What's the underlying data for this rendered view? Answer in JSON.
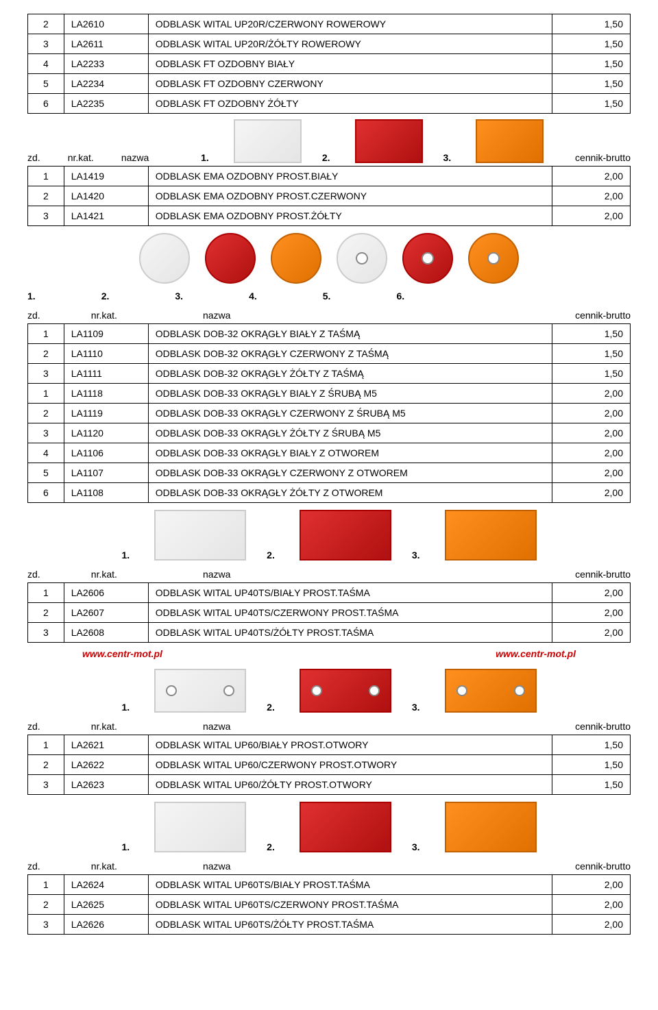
{
  "headers": {
    "zd": "zd.",
    "nrkat": "nr.kat.",
    "nazwa": "nazwa",
    "cennik": "cennik-brutto"
  },
  "links": {
    "url1": "www.centr-mot.pl",
    "url2": "www.centr-mot.pl"
  },
  "numlabels": [
    "1.",
    "2.",
    "3.",
    "4.",
    "5.",
    "6."
  ],
  "table1": {
    "rows": [
      {
        "n": "2",
        "code": "LA2610",
        "name": "ODBLASK WITAL UP20R/CZERWONY ROWEROWY",
        "price": "1,50"
      },
      {
        "n": "3",
        "code": "LA2611",
        "name": "ODBLASK WITAL UP20R/ŻÓŁTY ROWEROWY",
        "price": "1,50"
      },
      {
        "n": "4",
        "code": "LA2233",
        "name": "ODBLASK FT OZDOBNY BIAŁY",
        "price": "1,50"
      },
      {
        "n": "5",
        "code": "LA2234",
        "name": "ODBLASK FT OZDOBNY CZERWONY",
        "price": "1,50"
      },
      {
        "n": "6",
        "code": "LA2235",
        "name": "ODBLASK FT OZDOBNY ŻÓŁTY",
        "price": "1,50"
      }
    ]
  },
  "table2": {
    "rows": [
      {
        "n": "1",
        "code": "LA1419",
        "name": "ODBLASK EMA OZDOBNY PROST.BIAŁY",
        "price": "2,00"
      },
      {
        "n": "2",
        "code": "LA1420",
        "name": "ODBLASK EMA OZDOBNY PROST.CZERWONY",
        "price": "2,00"
      },
      {
        "n": "3",
        "code": "LA1421",
        "name": "ODBLASK EMA OZDOBNY PROST.ŻÓŁTY",
        "price": "2,00"
      }
    ]
  },
  "table3": {
    "rows": [
      {
        "n": "1",
        "code": "LA1109",
        "name": "ODBLASK DOB-32 OKRĄGŁY BIAŁY Z TAŚMĄ",
        "price": "1,50"
      },
      {
        "n": "2",
        "code": "LA1110",
        "name": "ODBLASK DOB-32 OKRĄGŁY CZERWONY Z TAŚMĄ",
        "price": "1,50"
      },
      {
        "n": "3",
        "code": "LA1111",
        "name": "ODBLASK DOB-32 OKRĄGŁY ŻÓŁTY Z TAŚMĄ",
        "price": "1,50"
      },
      {
        "n": "1",
        "code": "LA1118",
        "name": "ODBLASK DOB-33 OKRĄGŁY BIAŁY Z ŚRUBĄ M5",
        "price": "2,00"
      },
      {
        "n": "2",
        "code": "LA1119",
        "name": "ODBLASK DOB-33 OKRĄGŁY CZERWONY Z ŚRUBĄ M5",
        "price": "2,00"
      },
      {
        "n": "3",
        "code": "LA1120",
        "name": "ODBLASK DOB-33 OKRĄGŁY ŻÓŁTY Z ŚRUBĄ M5",
        "price": "2,00"
      },
      {
        "n": "4",
        "code": "LA1106",
        "name": "ODBLASK DOB-33 OKRĄGŁY BIAŁY Z OTWOREM",
        "price": "2,00"
      },
      {
        "n": "5",
        "code": "LA1107",
        "name": "ODBLASK DOB-33 OKRĄGŁY CZERWONY Z OTWOREM",
        "price": "2,00"
      },
      {
        "n": "6",
        "code": "LA1108",
        "name": "ODBLASK DOB-33 OKRĄGŁY ŻÓŁTY Z OTWOREM",
        "price": "2,00"
      }
    ]
  },
  "table4": {
    "rows": [
      {
        "n": "1",
        "code": "LA2606",
        "name": "ODBLASK WITAL UP40TS/BIAŁY PROST.TAŚMA",
        "price": "2,00"
      },
      {
        "n": "2",
        "code": "LA2607",
        "name": "ODBLASK WITAL UP40TS/CZERWONY PROST.TAŚMA",
        "price": "2,00"
      },
      {
        "n": "3",
        "code": "LA2608",
        "name": "ODBLASK WITAL UP40TS/ŻÓŁTY PROST.TAŚMA",
        "price": "2,00"
      }
    ]
  },
  "table5": {
    "rows": [
      {
        "n": "1",
        "code": "LA2621",
        "name": "ODBLASK WITAL UP60/BIAŁY PROST.OTWORY",
        "price": "1,50"
      },
      {
        "n": "2",
        "code": "LA2622",
        "name": "ODBLASK WITAL UP60/CZERWONY PROST.OTWORY",
        "price": "1,50"
      },
      {
        "n": "3",
        "code": "LA2623",
        "name": "ODBLASK WITAL UP60/ŻÓŁTY PROST.OTWORY",
        "price": "1,50"
      }
    ]
  },
  "table6": {
    "rows": [
      {
        "n": "1",
        "code": "LA2624",
        "name": "ODBLASK WITAL UP60TS/BIAŁY PROST.TAŚMA",
        "price": "2,00"
      },
      {
        "n": "2",
        "code": "LA2625",
        "name": "ODBLASK WITAL UP60TS/CZERWONY PROST.TAŚMA",
        "price": "2,00"
      },
      {
        "n": "3",
        "code": "LA2626",
        "name": "ODBLASK WITAL UP60TS/ŻÓŁTY PROST.TAŚMA",
        "price": "2,00"
      }
    ]
  }
}
